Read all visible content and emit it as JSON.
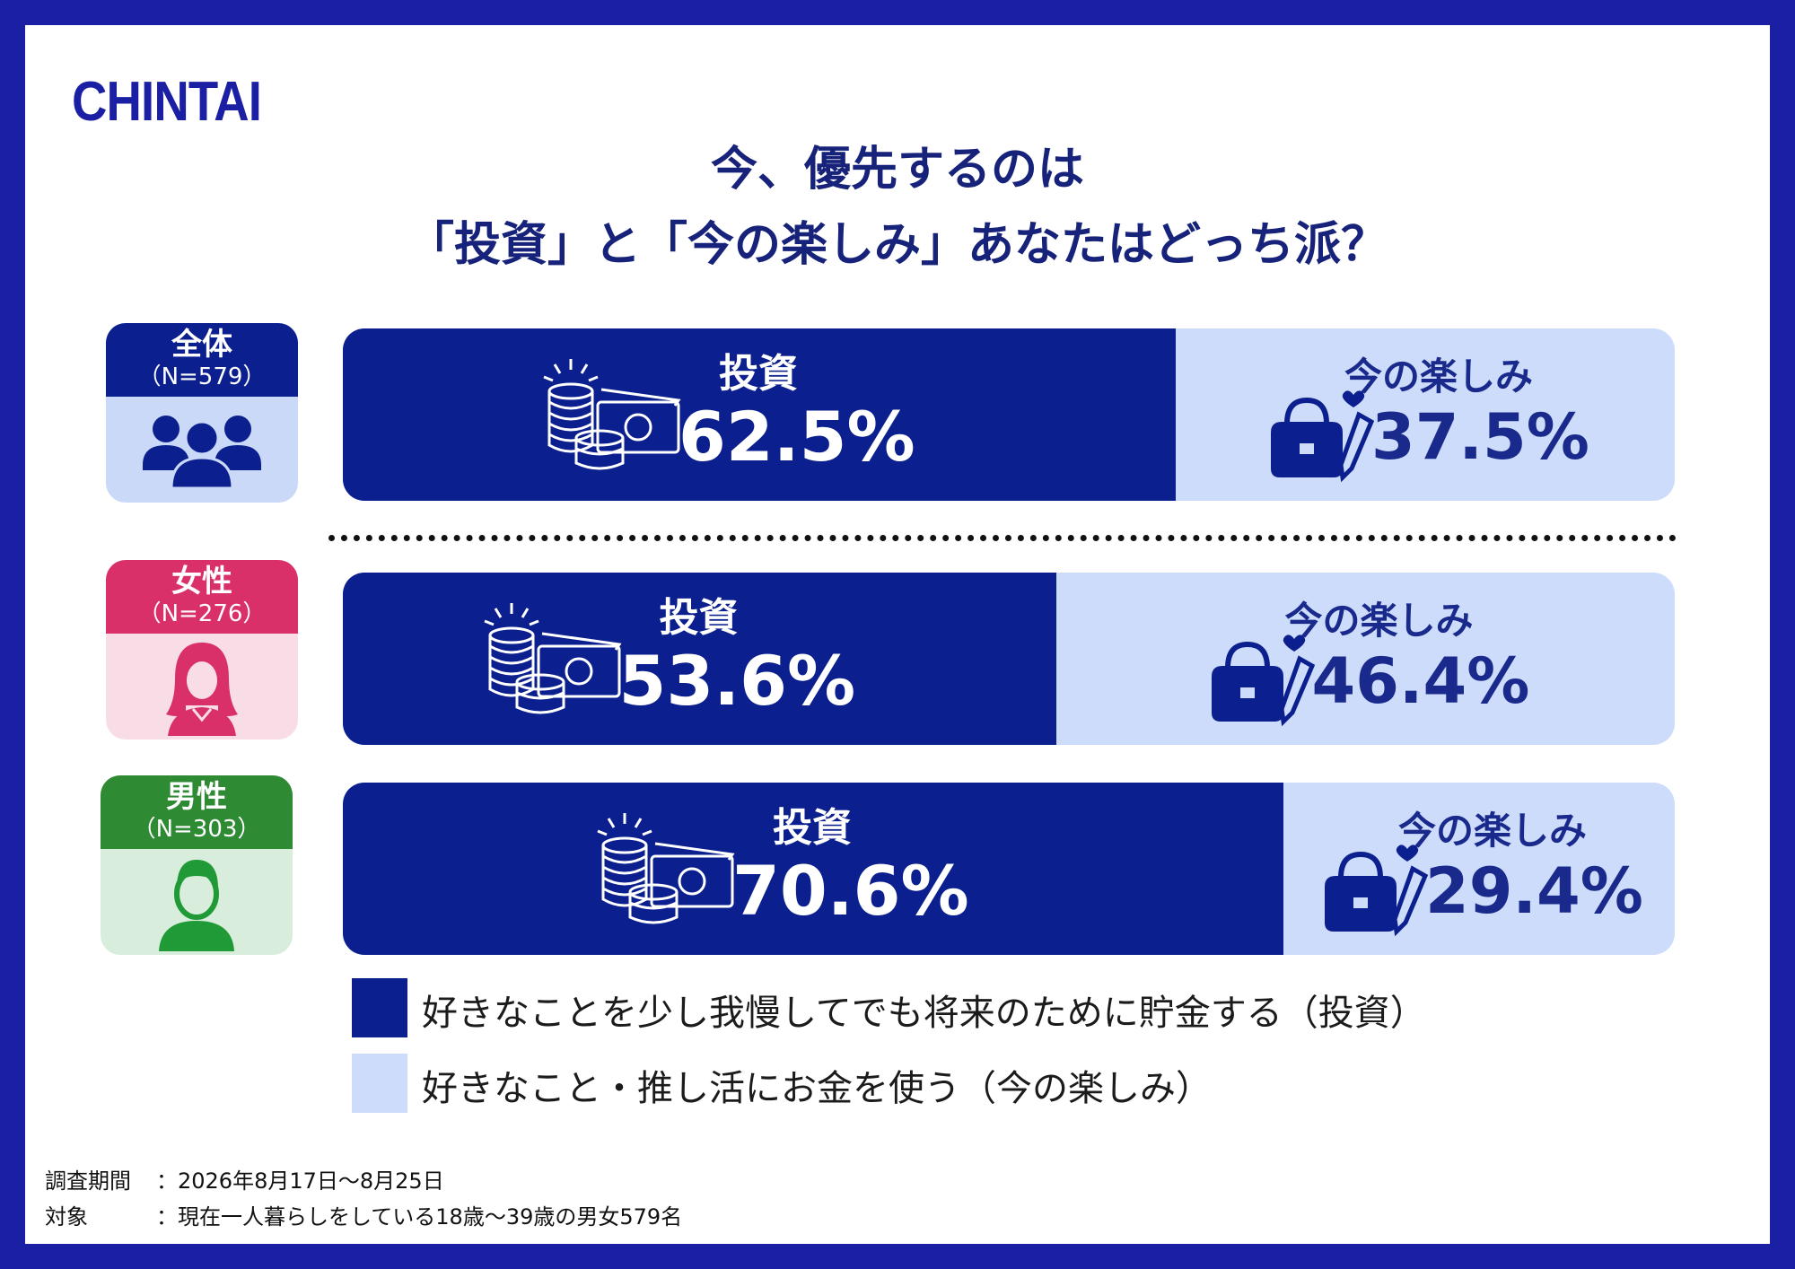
{
  "brand": {
    "logo": "CHINTAI"
  },
  "title": {
    "line1": "今、優先するのは",
    "line2": "「投資」と「今の楽しみ」あなたはどっち派？"
  },
  "groups": [
    {
      "name": "全体",
      "n": "（N=579）",
      "color": "#0b1f8f",
      "body_color": "#c9d9f7"
    },
    {
      "name": "女性",
      "n": "（N=276）",
      "color": "#d9306a",
      "body_color": "#f9dde6"
    },
    {
      "name": "男性",
      "n": "（N=303）",
      "color": "#2e8a33",
      "body_color": "#d8eddc"
    }
  ],
  "chart_data": {
    "type": "bar",
    "stacked": true,
    "orientation": "horizontal",
    "unit": "%",
    "categories": [
      "全体",
      "女性",
      "男性"
    ],
    "series": [
      {
        "name": "投資",
        "values": [
          62.5,
          53.6,
          70.6
        ],
        "labels": [
          "62.5%",
          "53.6%",
          "70.6%"
        ],
        "color": "#0b1f8f"
      },
      {
        "name": "今の楽しみ",
        "values": [
          37.5,
          46.4,
          29.4
        ],
        "labels": [
          "37.5%",
          "46.4%",
          "29.4%"
        ],
        "color": "#ccdcfa"
      }
    ],
    "xlim": [
      0,
      100
    ]
  },
  "legend": [
    {
      "text": "好きなことを少し我慢してでも将来のために貯金する（投資）",
      "color": "#0b1f8f"
    },
    {
      "text": "好きなこと・推し活にお金を使う（今の楽しみ）",
      "color": "#ccdcfa"
    }
  ],
  "footnote": {
    "period_key": "調査期間",
    "period_value": "：2026年8月17日～8月25日",
    "target_key": "対象",
    "target_value": "：現在一人暮らしをしている18歳～39歳の男女579名"
  }
}
